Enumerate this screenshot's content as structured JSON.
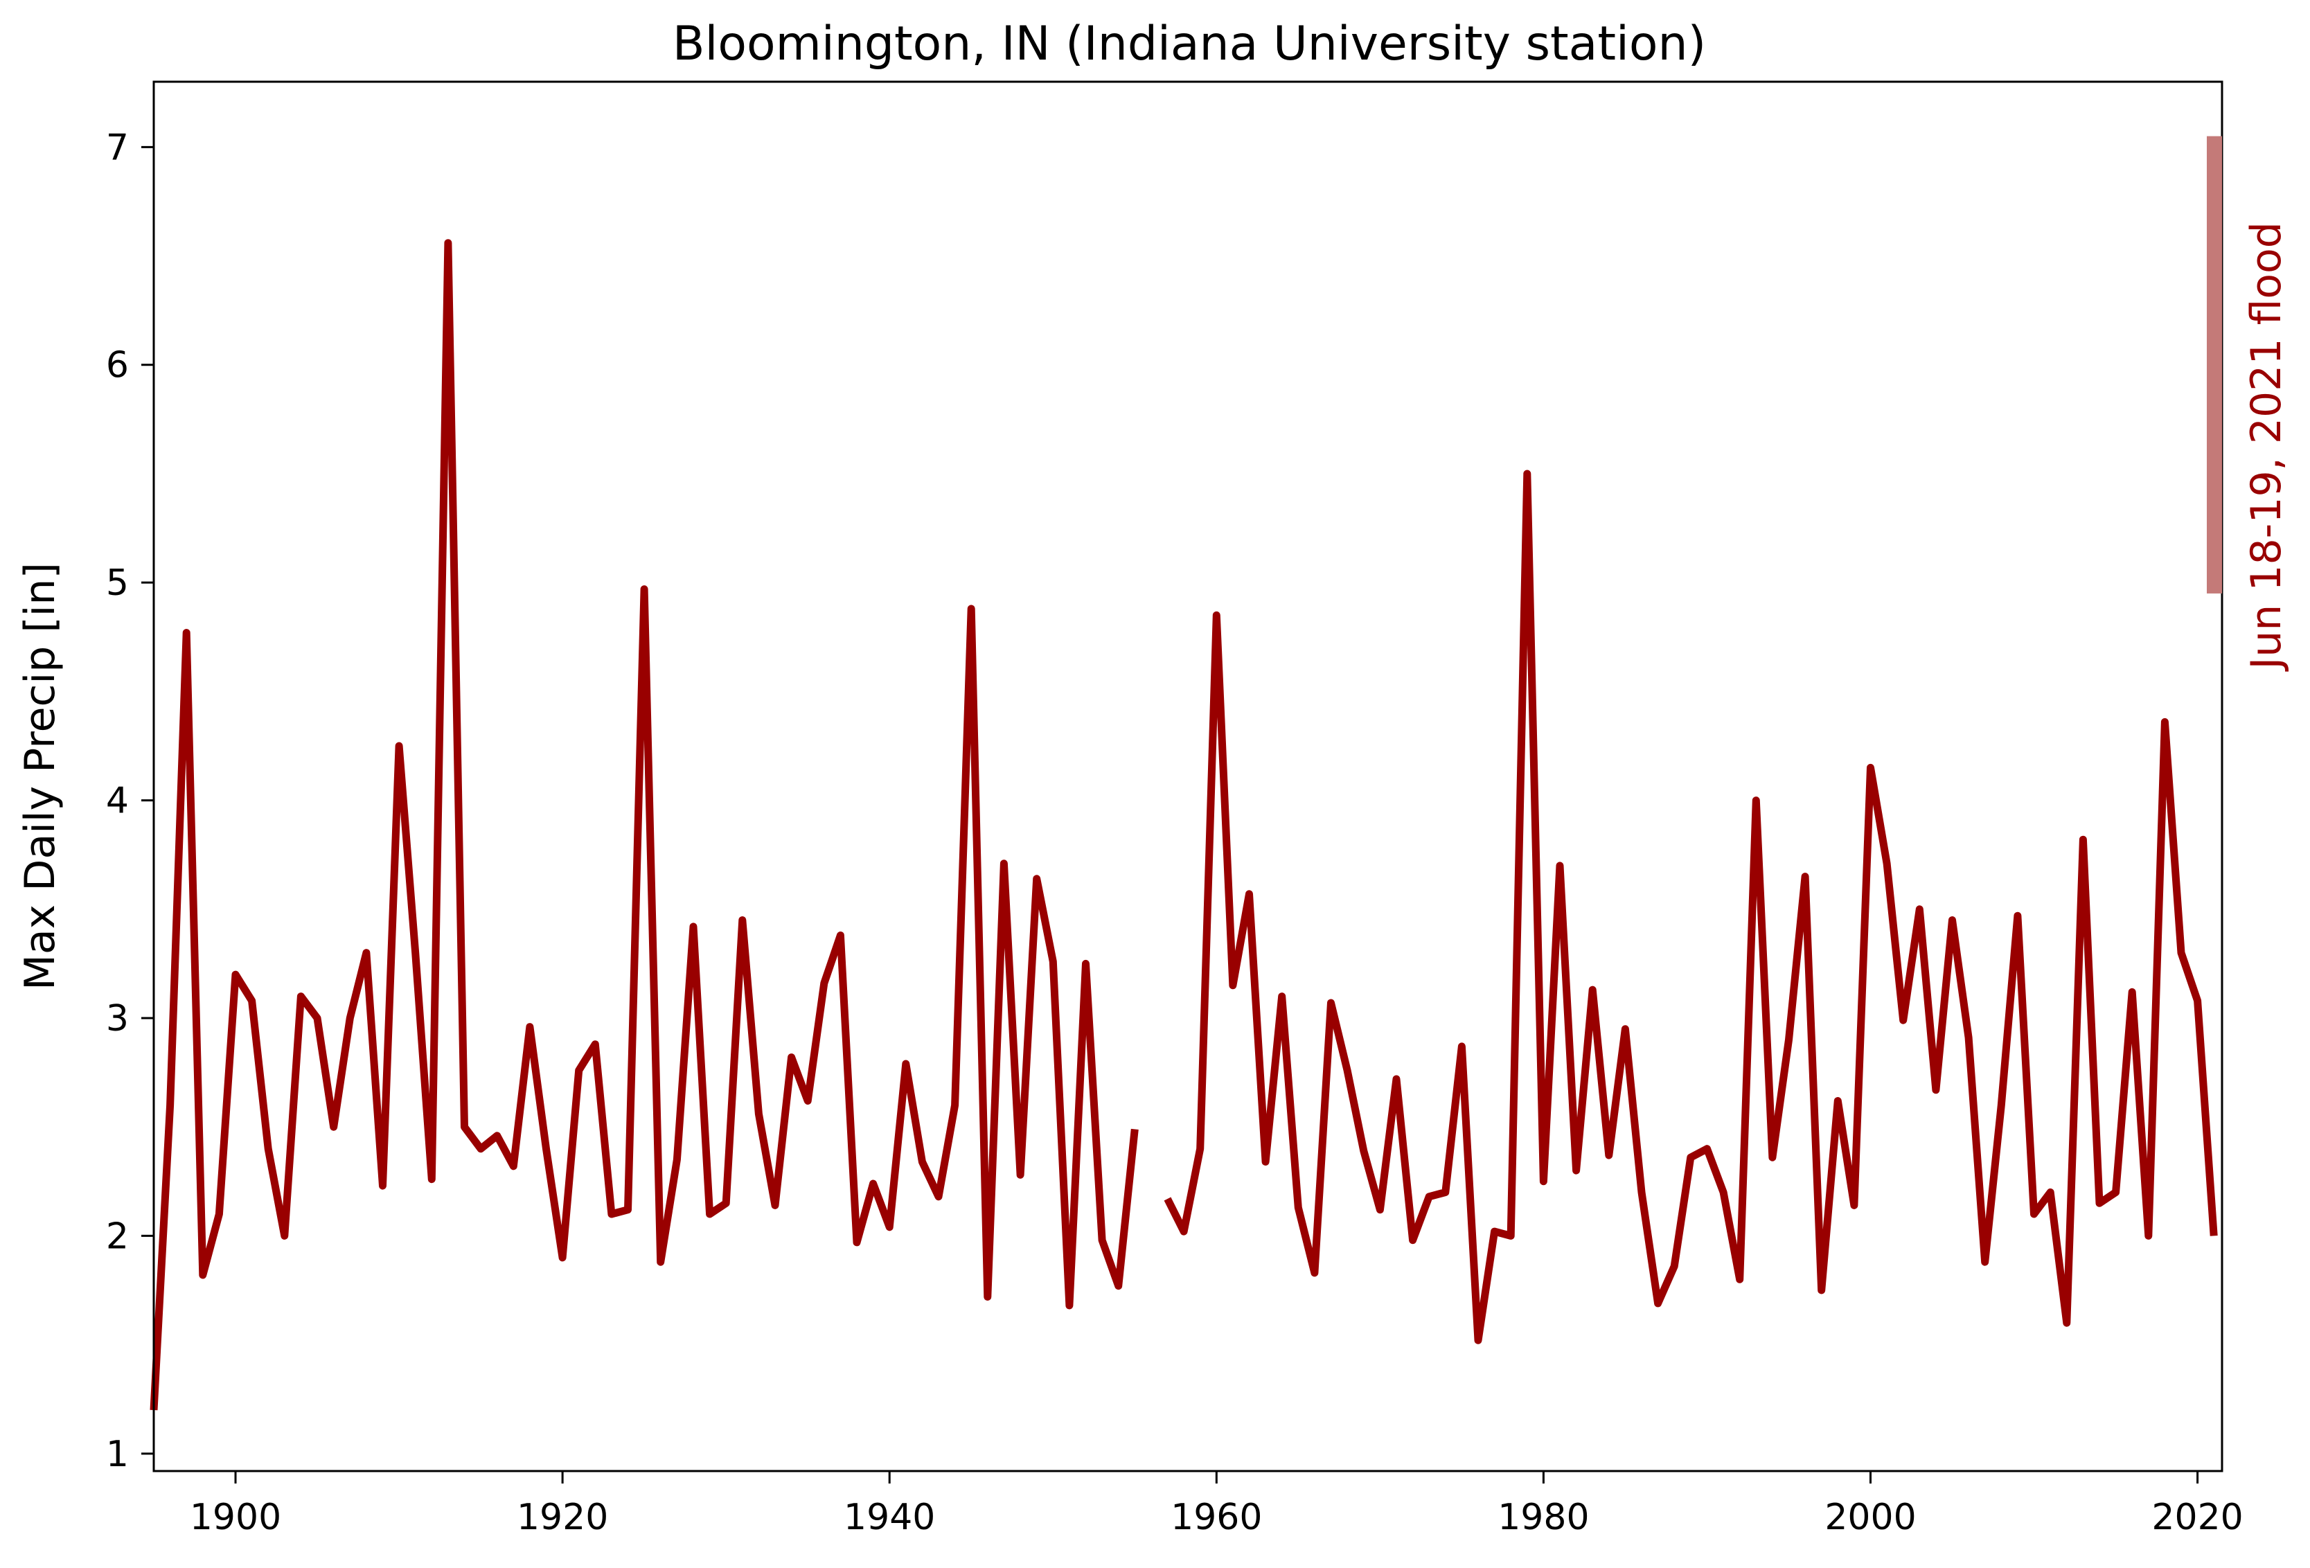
{
  "chart_data": {
    "type": "line",
    "title": "Bloomington, IN (Indiana University station)",
    "xlabel": "",
    "ylabel": "Max Daily Precip [in]",
    "xlim": [
      1895,
      2021.5
    ],
    "ylim": [
      0.92,
      7.3
    ],
    "xticks": [
      1900,
      1920,
      1940,
      1960,
      1980,
      2000,
      2020
    ],
    "yticks": [
      1,
      2,
      3,
      4,
      5,
      6,
      7
    ],
    "grid": false,
    "line_color": "#990000",
    "series": [
      {
        "x": [
          1895,
          1896,
          1897,
          1898,
          1899,
          1900,
          1901,
          1902,
          1903,
          1904,
          1905,
          1906,
          1907,
          1908,
          1909,
          1910,
          1911,
          1912,
          1913,
          1914,
          1915,
          1916,
          1917,
          1918,
          1919,
          1920,
          1921,
          1922,
          1923,
          1924,
          1925,
          1926,
          1927,
          1928,
          1929,
          1930,
          1931,
          1932,
          1933,
          1934,
          1935,
          1936,
          1937,
          1938,
          1939,
          1940,
          1941,
          1942,
          1943,
          1944,
          1945,
          1946,
          1947,
          1948,
          1949,
          1950,
          1951,
          1952,
          1953,
          1954,
          1955,
          1956,
          1957,
          1958,
          1959,
          1960,
          1961,
          1962,
          1963,
          1964,
          1965,
          1966,
          1967,
          1968,
          1969,
          1970,
          1971,
          1972,
          1973,
          1974,
          1975,
          1976,
          1977,
          1978,
          1979,
          1980,
          1981,
          1982,
          1983,
          1984,
          1985,
          1986,
          1987,
          1988,
          1989,
          1990,
          1991,
          1992,
          1993,
          1994,
          1995,
          1996,
          1997,
          1998,
          1999,
          2000,
          2001,
          2002,
          2003,
          2004,
          2005,
          2006,
          2007,
          2008,
          2009,
          2010,
          2011,
          2012,
          2013,
          2014,
          2015,
          2016,
          2017,
          2018,
          2019,
          2020,
          2021
        ],
        "y": [
          1.2,
          2.6,
          4.77,
          1.82,
          2.1,
          3.2,
          3.08,
          2.4,
          2.0,
          3.1,
          3.0,
          2.5,
          3.0,
          3.3,
          2.23,
          4.25,
          3.3,
          2.26,
          6.56,
          2.5,
          2.4,
          2.46,
          2.32,
          2.96,
          2.4,
          1.9,
          2.76,
          2.88,
          2.1,
          2.12,
          4.97,
          1.88,
          2.35,
          3.42,
          2.1,
          2.15,
          3.45,
          2.56,
          2.14,
          2.82,
          2.62,
          3.16,
          3.38,
          1.97,
          2.24,
          2.04,
          2.79,
          2.34,
          2.18,
          2.6,
          4.88,
          1.72,
          3.71,
          2.28,
          3.64,
          3.26,
          1.68,
          3.25,
          1.98,
          1.77,
          2.49,
          null,
          2.17,
          2.02,
          2.4,
          4.85,
          3.15,
          3.57,
          2.34,
          3.1,
          2.13,
          1.83,
          3.07,
          2.76,
          2.39,
          2.12,
          2.72,
          1.98,
          2.18,
          2.2,
          2.87,
          1.52,
          2.02,
          2.0,
          5.5,
          2.25,
          3.7,
          2.3,
          3.13,
          2.37,
          2.95,
          2.2,
          1.69,
          1.86,
          2.36,
          2.4,
          2.2,
          1.8,
          4.0,
          2.36,
          2.9,
          3.65,
          1.75,
          2.62,
          2.14,
          4.15,
          3.71,
          2.99,
          3.5,
          2.67,
          3.45,
          2.91,
          1.88,
          2.6,
          3.47,
          2.1,
          2.2,
          1.6,
          3.82,
          2.15,
          2.2,
          3.12,
          2.0,
          4.36,
          3.3,
          3.08,
          2.0
        ]
      }
    ],
    "annotation": {
      "text": "Jun 18-19, 2021 flood",
      "ymin": 4.95,
      "ymax": 7.05,
      "bar_color": "#c47a78",
      "text_color": "#990000"
    }
  }
}
